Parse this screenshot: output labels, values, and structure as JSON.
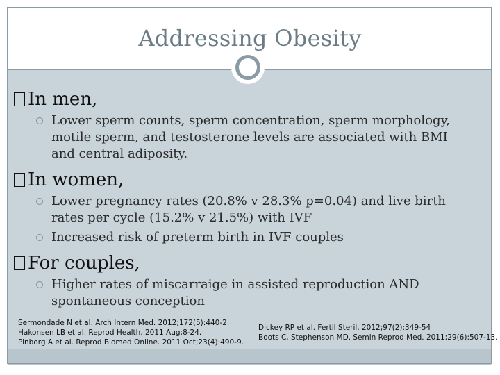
{
  "slide": {
    "title": "Addressing Obesity",
    "sections": [
      {
        "heading": "In men,",
        "bullets": [
          "Lower sperm counts, sperm concentration, sperm morphology, motile sperm, and testosterone levels are associated with BMI and central adiposity."
        ]
      },
      {
        "heading": "In women,",
        "bullets": [
          "Lower pregnancy rates (20.8% v 28.3% p=0.04) and live birth rates per cycle (15.2% v 21.5%) with IVF",
          "Increased risk of preterm birth in IVF couples"
        ]
      },
      {
        "heading": "For couples,",
        "bullets": [
          "Higher rates of miscarraige in assisted reproduction AND spontaneous conception"
        ]
      }
    ],
    "references_left": [
      "Sermondade N et al. Arch Intern Med. 2012;172(5):440-2.",
      "Hakonsen LB et al. Reprod Health. 2011 Aug;8-24.",
      "Pinborg A et al. Reprod Biomed Online. 2011 Oct;23(4):490-9."
    ],
    "references_right": [
      "Dickey RP et al. Fertil Steril. 2012;97(2):349-54",
      "Boots C, Stephenson MD. Semin Reprod Med. 2011;29(6):507-13."
    ]
  }
}
